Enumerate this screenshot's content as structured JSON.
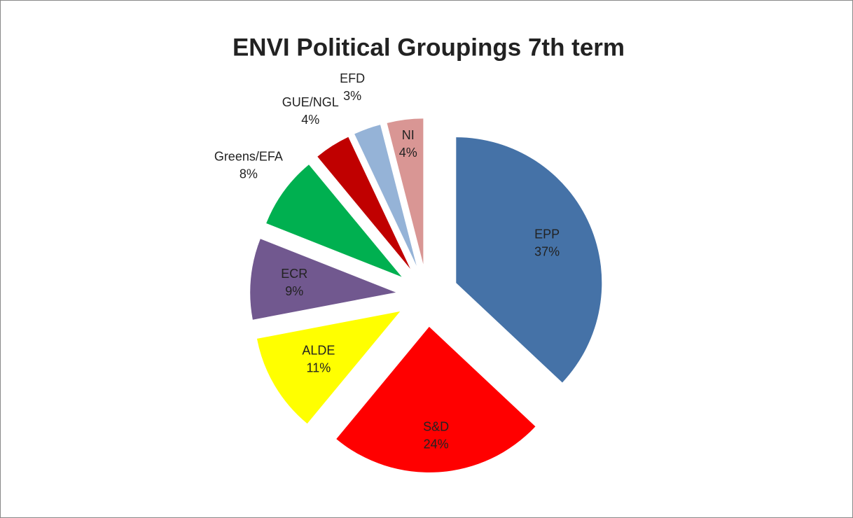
{
  "chart_data": {
    "type": "pie",
    "title": "ENVI Political Groupings 7th term",
    "categories": [
      "EPP",
      "S&D",
      "ALDE",
      "ECR",
      "Greens/EFA",
      "GUE/NGL",
      "EFD",
      "NI"
    ],
    "values": [
      37,
      24,
      11,
      9,
      8,
      4,
      3,
      4
    ],
    "value_labels": [
      "37%",
      "24%",
      "11%",
      "9%",
      "8%",
      "4%",
      "3%",
      "4%"
    ],
    "colors": [
      "#4572a7",
      "#ff0000",
      "#ffff00",
      "#71588f",
      "#00b050",
      "#c00000",
      "#95b3d7",
      "#d99694"
    ]
  }
}
